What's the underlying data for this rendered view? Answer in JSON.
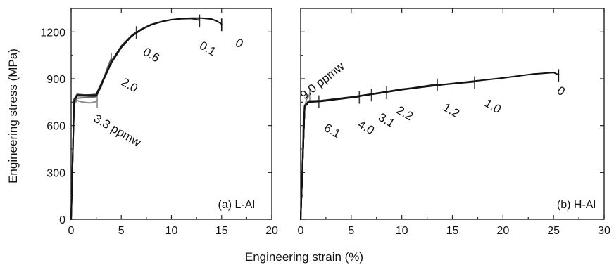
{
  "figure": {
    "xlabel": "Engineering strain (%)",
    "ylabel": "Engineering stress (MPa)"
  },
  "chart_data": [
    {
      "type": "line",
      "panel": "left",
      "panel_label": "(a) L-Al",
      "xlim": [
        0,
        20
      ],
      "ylim": [
        0,
        1350
      ],
      "xticks": [
        0,
        5,
        10,
        15,
        20
      ],
      "yticks": [
        0,
        300,
        600,
        900,
        1200
      ],
      "grid": false,
      "series": [
        {
          "name": "0",
          "color": "#111111",
          "x": [
            0,
            0.3,
            0.6,
            1.5,
            2.5,
            3.0,
            4.0,
            5.0,
            6.0,
            7.0,
            8.0,
            9.0,
            10.0,
            11.0,
            12.0,
            13.0,
            14.0,
            14.5,
            15.0
          ],
          "y": [
            0,
            760,
            790,
            790,
            790,
            860,
            1000,
            1100,
            1170,
            1215,
            1245,
            1265,
            1278,
            1285,
            1288,
            1288,
            1282,
            1270,
            1250
          ]
        },
        {
          "name": "0.1",
          "color": "#222222",
          "x": [
            0,
            0.3,
            0.6,
            1.5,
            2.5,
            3.0,
            4.0,
            5.0,
            6.0,
            7.0,
            8.0,
            9.0,
            10.0,
            11.0,
            12.0,
            12.8
          ],
          "y": [
            0,
            765,
            795,
            795,
            795,
            865,
            1005,
            1105,
            1175,
            1218,
            1248,
            1266,
            1278,
            1284,
            1285,
            1275
          ]
        },
        {
          "name": "0.6",
          "color": "#333333",
          "x": [
            0,
            0.3,
            0.6,
            1.5,
            2.5,
            3.0,
            4.0,
            5.0,
            6.0,
            6.5
          ],
          "y": [
            0,
            770,
            800,
            795,
            800,
            870,
            1010,
            1110,
            1175,
            1200
          ]
        },
        {
          "name": "2.0",
          "color": "#666666",
          "x": [
            0,
            0.3,
            0.6,
            1.5,
            2.5,
            3.0,
            3.5,
            4.0
          ],
          "y": [
            0,
            750,
            775,
            780,
            785,
            850,
            950,
            1030
          ]
        },
        {
          "name": "3.3 ppmw",
          "color": "#888888",
          "x": [
            0,
            0.3,
            0.6,
            1.2,
            1.8,
            2.3,
            2.6
          ],
          "y": [
            0,
            740,
            760,
            750,
            745,
            750,
            760
          ]
        }
      ],
      "annotations": [
        "0",
        "0.1",
        "0.6",
        "2.0",
        "3.3 ppmw"
      ]
    },
    {
      "type": "line",
      "panel": "right",
      "panel_label": "(b) H-Al",
      "xlim": [
        0,
        30
      ],
      "ylim": [
        0,
        1350
      ],
      "xticks": [
        0,
        5,
        10,
        15,
        20,
        25,
        30
      ],
      "yticks": [
        0,
        300,
        600,
        900,
        1200
      ],
      "grid": false,
      "series": [
        {
          "name": "0",
          "color": "#111111",
          "x": [
            0,
            0.4,
            0.8,
            2,
            5,
            10,
            15,
            20,
            23,
            25,
            25.5
          ],
          "y": [
            0,
            720,
            750,
            755,
            780,
            830,
            870,
            905,
            930,
            940,
            925
          ]
        },
        {
          "name": "1.0",
          "color": "#1a1a1a",
          "x": [
            0,
            0.4,
            0.8,
            2,
            5,
            10,
            15,
            17.2
          ],
          "y": [
            0,
            725,
            755,
            758,
            782,
            833,
            868,
            880
          ]
        },
        {
          "name": "1.2",
          "color": "#222222",
          "x": [
            0,
            0.4,
            0.8,
            2,
            5,
            10,
            13.5
          ],
          "y": [
            0,
            722,
            752,
            756,
            780,
            830,
            865
          ]
        },
        {
          "name": "2.2",
          "color": "#2a2a2a",
          "x": [
            0,
            0.4,
            0.8,
            2,
            5,
            8.5
          ],
          "y": [
            0,
            728,
            758,
            760,
            783,
            815
          ]
        },
        {
          "name": "3.1",
          "color": "#333333",
          "x": [
            0,
            0.4,
            0.8,
            2,
            5,
            7
          ],
          "y": [
            0,
            726,
            756,
            758,
            782,
            800
          ]
        },
        {
          "name": "4.0",
          "color": "#3a3a3a",
          "x": [
            0,
            0.4,
            0.8,
            2,
            5.8
          ],
          "y": [
            0,
            724,
            754,
            757,
            785
          ]
        },
        {
          "name": "6.1",
          "color": "#444444",
          "x": [
            0,
            0.4,
            0.8,
            1.5,
            1.8
          ],
          "y": [
            0,
            720,
            750,
            755,
            758
          ]
        },
        {
          "name": "9.0 ppmw",
          "color": "#8a8a8a",
          "x": [
            0,
            0.3,
            0.6,
            0.9
          ],
          "y": [
            0,
            700,
            770,
            800
          ]
        }
      ],
      "annotations": [
        "0",
        "1.0",
        "1.2",
        "2.2",
        "3.1",
        "4.0",
        "6.1",
        "9.0 ppmw"
      ]
    }
  ]
}
